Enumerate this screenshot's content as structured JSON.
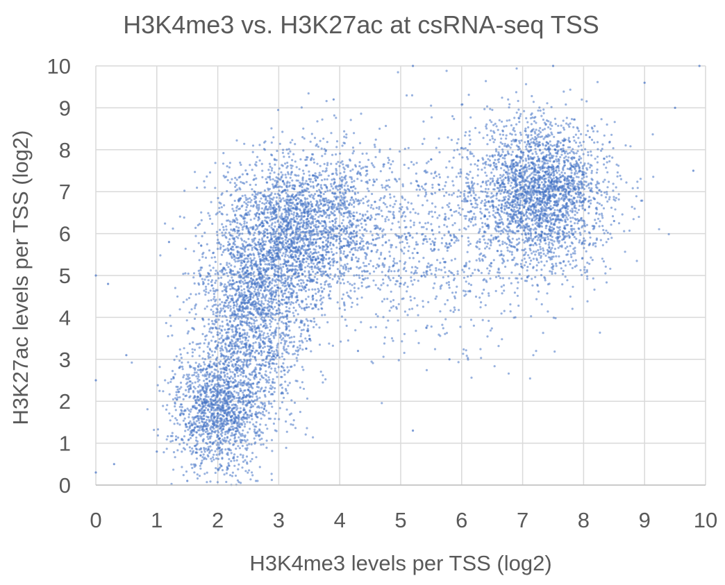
{
  "chart_data": {
    "type": "scatter",
    "title": "H3K4me3 vs. H3K27ac at csRNA-seq TSS",
    "xlabel": "H3K4me3 levels per TSS (log2)",
    "ylabel": "H3K27ac levels per TSS (log2)",
    "xlim": [
      0,
      10
    ],
    "ylim": [
      0,
      10
    ],
    "x_ticks": [
      "0",
      "1",
      "2",
      "3",
      "4",
      "5",
      "6",
      "7",
      "8",
      "9",
      "10"
    ],
    "y_ticks": [
      "0",
      "1",
      "2",
      "3",
      "4",
      "5",
      "6",
      "7",
      "8",
      "9",
      "10"
    ],
    "grid": true,
    "legend": "none",
    "marker_color": "#4472C4",
    "density_clusters": [
      {
        "x_mean": 2.0,
        "y_mean": 1.8,
        "x_sd": 0.38,
        "y_sd": 0.8,
        "share": 0.16
      },
      {
        "x_mean": 2.6,
        "y_mean": 4.3,
        "x_sd": 0.45,
        "y_sd": 1.2,
        "share": 0.22
      },
      {
        "x_mean": 3.4,
        "y_mean": 6.2,
        "x_sd": 0.6,
        "y_sd": 0.9,
        "share": 0.22
      },
      {
        "x_mean": 7.3,
        "y_mean": 7.0,
        "x_sd": 0.55,
        "y_sd": 0.85,
        "share": 0.28
      },
      {
        "x_mean": 5.2,
        "y_mean": 5.8,
        "x_sd": 1.2,
        "y_sd": 1.3,
        "share": 0.12
      }
    ],
    "sample_points": [
      [
        0.0,
        5.0
      ],
      [
        0.0,
        2.5
      ],
      [
        0.0,
        0.3
      ],
      [
        0.2,
        4.8
      ],
      [
        0.3,
        0.5
      ],
      [
        0.5,
        3.1
      ],
      [
        1.0,
        0.8
      ],
      [
        1.2,
        5.8
      ],
      [
        1.5,
        0.1
      ],
      [
        2.0,
        1.7
      ],
      [
        2.1,
        2.5
      ],
      [
        2.3,
        3.6
      ],
      [
        2.5,
        4.4
      ],
      [
        2.8,
        5.4
      ],
      [
        3.0,
        6.0
      ],
      [
        3.3,
        6.7
      ],
      [
        3.5,
        7.3
      ],
      [
        3.9,
        9.2
      ],
      [
        4.3,
        3.2
      ],
      [
        4.8,
        5.1
      ],
      [
        5.2,
        1.3
      ],
      [
        5.2,
        10.0
      ],
      [
        5.8,
        3.0
      ],
      [
        6.3,
        5.8
      ],
      [
        6.8,
        6.4
      ],
      [
        7.2,
        7.0
      ],
      [
        7.5,
        7.6
      ],
      [
        7.5,
        10.0
      ],
      [
        7.8,
        7.8
      ],
      [
        8.1,
        8.3
      ],
      [
        8.5,
        6.3
      ],
      [
        9.0,
        9.6
      ],
      [
        9.5,
        9.0
      ],
      [
        9.8,
        7.5
      ],
      [
        9.9,
        10.0
      ]
    ]
  }
}
